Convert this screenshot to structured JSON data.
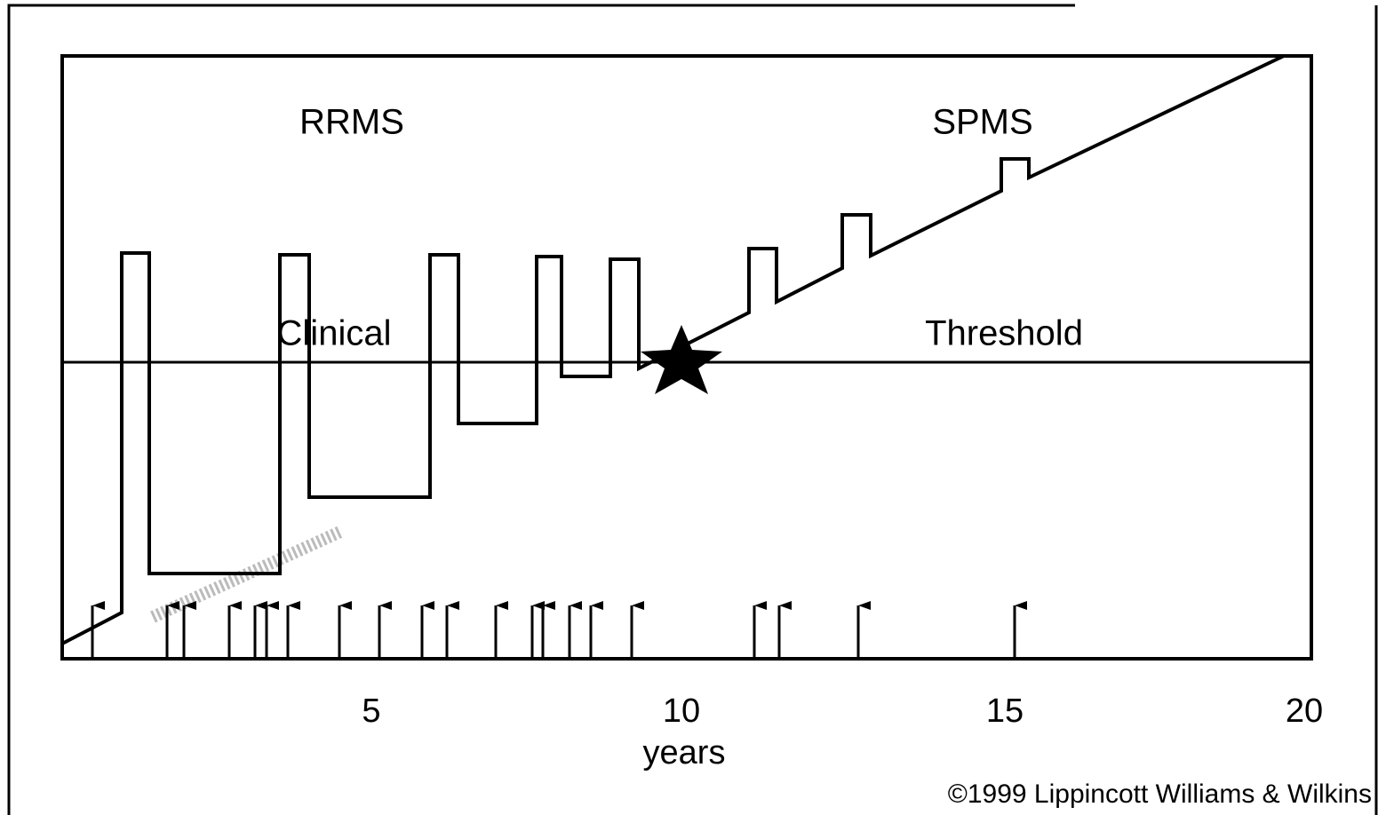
{
  "labels": {
    "rrms": "RRMS",
    "spms": "SPMS",
    "clinical": "Clinical",
    "threshold": "Threshold"
  },
  "x_axis": {
    "ticks": [
      "5",
      "10",
      "15",
      "20"
    ],
    "label": "years"
  },
  "copyright": "©1999 Lippincott Williams & Wilkins"
}
